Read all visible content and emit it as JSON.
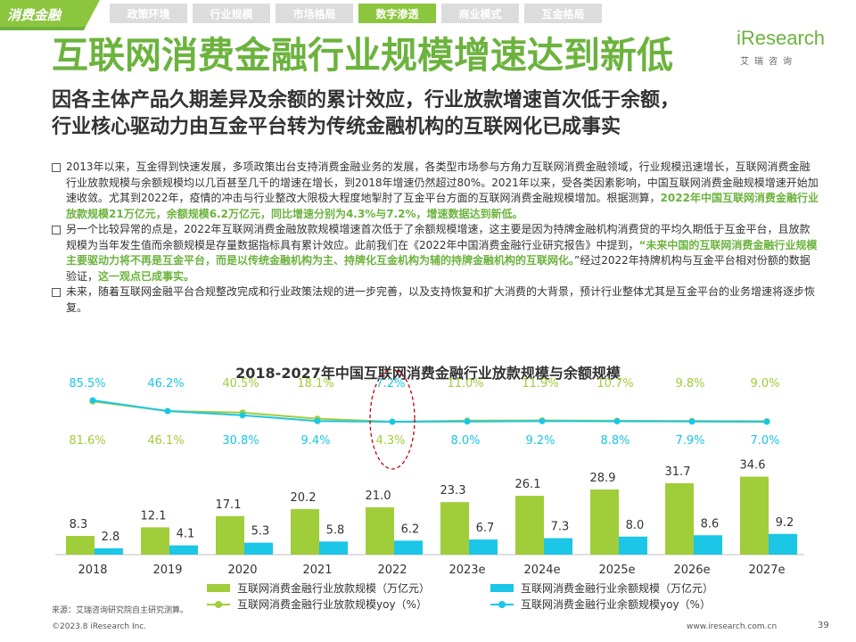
{
  "section_tag": "消费金融",
  "nav_tabs": [
    {
      "label": "政策环境",
      "active": false
    },
    {
      "label": "行业规模",
      "active": false
    },
    {
      "label": "市场格局",
      "active": false
    },
    {
      "label": "数字渗透",
      "active": true
    },
    {
      "label": "商业模式",
      "active": false
    },
    {
      "label": "互金格局",
      "active": false
    }
  ],
  "logo": {
    "brand": "iResearch",
    "cn": "艾瑞咨询"
  },
  "title": "互联网消费金融行业规模增速达到新低",
  "subtitle": {
    "line1": "因各主体产品久期差异及余额的累计效应，行业放款增速首次低于余额，",
    "line2": "行业核心驱动力由互金平台转为传统金融机构的互联网化已成事实"
  },
  "bullets": [
    {
      "text": "2013年以来，互金得到快速发展，多项政策出台支持消费金融业务的发展，各类型市场参与方角力互联网消费金融领域，行业规模迅速增长，互联网消费金融行业放款规模与余额规模均以几百甚至几千的增速在增长，到2018年增速仍然超过80%。2021年以来，受各类因素影响，中国互联网消费金融规模增速开始加速收敛。尤其到2022年，疫情的冲击与行业整改大限极大程度地掣肘了互金平台方面的互联网消费金融规模增加。根据测算，",
      "highlight": "2022年中国互联网消费金融行业放款规模21万亿元，余额规模6.2万亿元，同比增速分别为4.3%与7.2%，增速数据达到新低。"
    },
    {
      "text": "另一个比较异常的点是，2022年互联网消费金融放款规模增速首次低于了余额规模增速，这主要是因为持牌金融机构消费贷的平均久期低于互金平台，且放款规模为当年发生值而余额规模是存量数据指标具有累计效应。此前我们在《2022年中国消费金融行业研究报告》中提到，",
      "highlight": "“未来中国的互联网消费金融行业规模主要驱动力将不再是互金平台，而是以传统金融机构为主、持牌化互金机构为辅的持牌金融机构的互联网化。",
      "text2": "”经过2022年持牌机构与互金平台相对份额的数据验证，",
      "highlight2": "这一观点已成事实。"
    },
    {
      "text": "未来，随着互联网金融平台合规整改完成和行业政策法规的进一步完善，以及支持恢复和扩大消费的大背景，预计行业整体尤其是互金平台的业务增速将逐步恢复。"
    }
  ],
  "chart_data": {
    "type": "bar",
    "title": "2018-2027年中国互联网消费金融行业放款规模与余额规模",
    "categories": [
      "2018",
      "2019",
      "2020",
      "2021",
      "2022",
      "2023e",
      "2024e",
      "2025e",
      "2026e",
      "2027e"
    ],
    "series": [
      {
        "name": "互联网消费金融行业放款规模（万亿元）",
        "kind": "bar",
        "color": "#a0cd3a",
        "values": [
          8.3,
          12.1,
          17.1,
          20.2,
          21.0,
          23.3,
          26.1,
          28.9,
          31.7,
          34.6
        ]
      },
      {
        "name": "互联网消费金融行业余额规模（万亿元）",
        "kind": "bar",
        "color": "#1bc6e7",
        "values": [
          2.8,
          4.1,
          5.3,
          5.8,
          6.2,
          6.7,
          7.3,
          8.0,
          8.6,
          9.2
        ]
      },
      {
        "name": "互联网消费金融行业放款规模yoy（%）",
        "kind": "line",
        "color": "#a0cd3a",
        "values": [
          81.6,
          46.1,
          40.5,
          18.1,
          4.3,
          11.0,
          11.9,
          10.7,
          9.8,
          9.0
        ],
        "labels": [
          "81.6%",
          "46.1%",
          "40.5%",
          "18.1%",
          "4.3%",
          "11.0%",
          "11.9%",
          "10.7%",
          "9.8%",
          "9.0%"
        ]
      },
      {
        "name": "互联网消费金融行业余额规模yoy（%）",
        "kind": "line",
        "color": "#1bc6e7",
        "values": [
          85.5,
          46.2,
          30.8,
          9.4,
          7.2,
          8.0,
          9.2,
          8.8,
          7.9,
          7.0
        ],
        "labels": [
          "85.5%",
          "46.2%",
          "30.8%",
          "9.4%",
          "7.2%",
          "8.0%",
          "9.2%",
          "8.8%",
          "7.9%",
          "7.0%"
        ]
      }
    ],
    "upper_labels": [
      "85.5%",
      "46.2%",
      "40.5%",
      "18.1%",
      "7.2%",
      "11.0%",
      "11.9%",
      "10.7%",
      "9.8%",
      "9.0%"
    ],
    "lower_labels": [
      "81.6%",
      "46.1%",
      "30.8%",
      "9.4%",
      "4.3%",
      "8.0%",
      "9.2%",
      "8.8%",
      "7.9%",
      "7.0%"
    ],
    "bar_ylim": [
      0,
      40
    ],
    "highlight_category": "2022",
    "highlight_color": "#c0000a",
    "legend_position": "bottom",
    "gridlines": false
  },
  "footer": {
    "source": "来源：艾瑞咨询研究院自主研究测算。",
    "copyright": "©2023.8 iResearch Inc.",
    "site": "www.iresearch.com.cn",
    "page": "39"
  }
}
